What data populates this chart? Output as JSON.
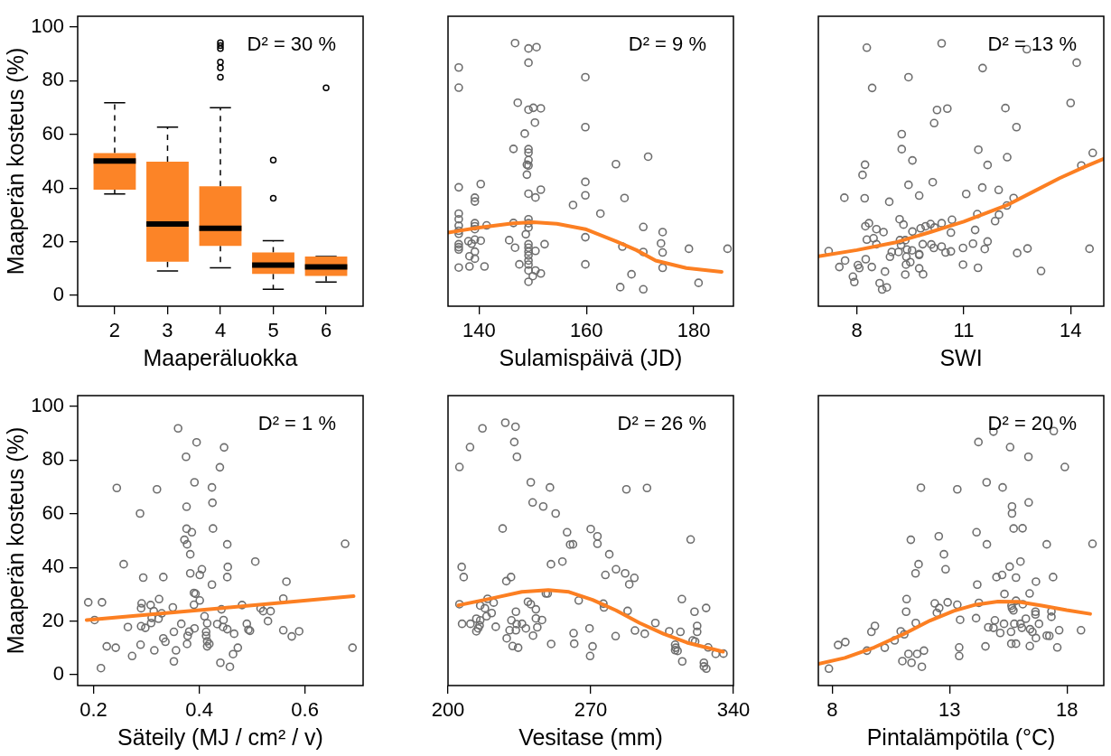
{
  "chart_data": [
    {
      "type": "box",
      "xlabel": "Maaperäluokka",
      "ylabel": "Maaperän kosteus (%)",
      "categories": [
        "2",
        "3",
        "4",
        "5",
        "6"
      ],
      "color": "#fc8427",
      "ylim": [
        -4,
        104
      ],
      "yticks": [
        0,
        20,
        40,
        60,
        80,
        100
      ],
      "grid": false,
      "legend": false,
      "annotations": [
        "D² = 30 %"
      ],
      "boxes": [
        {
          "low": 37.8,
          "q1": 39.4,
          "median": 50.1,
          "q3": 53.0,
          "high": 71.8
        },
        {
          "low": 9.1,
          "q1": 12.6,
          "median": 26.6,
          "q3": 49.8,
          "high": 62.7
        },
        {
          "low": 10.3,
          "q1": 18.5,
          "median": 25.0,
          "q3": 40.7,
          "high": 69.9,
          "outliers": [
            94.2,
            93.1,
            92.0,
            86.9,
            84.8,
            81.3
          ]
        },
        {
          "low": 2.3,
          "q1": 8.0,
          "median": 11.3,
          "q3": 16.0,
          "high": 20.4,
          "outliers": [
            50.4,
            36.2
          ]
        },
        {
          "low": 5.0,
          "q1": 7.3,
          "median": 10.6,
          "q3": 14.5,
          "high": 14.5,
          "outliers": [
            77.3
          ]
        }
      ]
    },
    {
      "type": "scatter",
      "xlabel": "Sulamispäivä (JD)",
      "xlim": [
        134.2,
        187.4
      ],
      "xticks": [
        140,
        160,
        180
      ],
      "ylim": [
        -4,
        104
      ],
      "tick_labels": "x",
      "grid": false,
      "legend": false,
      "marker": "circle",
      "annotations": [
        "D² = 9 %"
      ],
      "series": [
        {
          "type": "scatter",
          "color": "#6e6e6e",
          "x": [
            136.2,
            136.2,
            146.7,
            149.2,
            150.7,
            149.2,
            159.8,
            147.2,
            149.2,
            150.1,
            151.5,
            150.4,
            159.8,
            148.5,
            146.4,
            149.2,
            149.2,
            149.2,
            148.9,
            149.2,
            148.9,
            171.5,
            165.5,
            136.2,
            140.3,
            159.8,
            151.5,
            149.2,
            150.5,
            159.8,
            139.2,
            139.2,
            167.1,
            157.5,
            162.6,
            136.2,
            136.2,
            136.2,
            136.2,
            136.2,
            139.2,
            139.2,
            139.2,
            141.4,
            146.4,
            149.2,
            149.2,
            149.2,
            148.7,
            170.6,
            174.2,
            138.0,
            138.6,
            140.3,
            139.2,
            145.6,
            136.2,
            136.2,
            136.2,
            146.7,
            149.2,
            149.2,
            149.2,
            149.2,
            149.2,
            149.2,
            150.5,
            152.2,
            159.8,
            166.7,
            170.6,
            173.9,
            174.2,
            179.1,
            186.3,
            138.2,
            139.2,
            139.2,
            136.2,
            138.2,
            141.0,
            147.5,
            159.8,
            149.2,
            150.5,
            151.5,
            150.0,
            149.2,
            168.4,
            174.2,
            166.3,
            170.6,
            180.9
          ],
          "values": [
            84.9,
            77.4,
            94.0,
            92.0,
            92.5,
            86.7,
            81.3,
            71.8,
            69.2,
            69.9,
            69.7,
            64.4,
            62.7,
            60.3,
            54.6,
            54.5,
            53.2,
            50.4,
            48.7,
            48.4,
            45.0,
            51.7,
            48.9,
            40.3,
            41.5,
            42.3,
            39.4,
            37.9,
            36.5,
            37.3,
            36.4,
            35.0,
            36.3,
            33.7,
            30.5,
            30.5,
            28.4,
            26.0,
            23.0,
            24.1,
            26.9,
            25.8,
            24.7,
            26.1,
            27.0,
            28.4,
            26.9,
            25.3,
            22.8,
            25.5,
            23.6,
            20.2,
            19.3,
            20.4,
            20.8,
            20.6,
            19.1,
            18.0,
            17.1,
            17.8,
            19.1,
            17.8,
            16.3,
            14.9,
            13.0,
            11.5,
            16.6,
            19.1,
            21.7,
            18.2,
            16.2,
            19.4,
            16.0,
            17.4,
            17.4,
            14.6,
            13.7,
            16.3,
            10.4,
            10.8,
            10.8,
            11.6,
            11.6,
            9.3,
            9.3,
            8.2,
            7.2,
            5.1,
            7.9,
            10.3,
            3.1,
            2.3,
            4.7
          ]
        },
        {
          "type": "line",
          "marker": "none",
          "color": "#fc7f22",
          "x": [
            134.2,
            140,
            146.3,
            150.1,
            154.5,
            159.8,
            165.5,
            169.3,
            172.9,
            178.6,
            185.2
          ],
          "values": [
            23.4,
            25.3,
            26.9,
            27.3,
            26.7,
            24.7,
            20.2,
            16.9,
            13.0,
            10.2,
            8.8
          ]
        }
      ]
    },
    {
      "type": "scatter",
      "xlabel": "SWI",
      "xlim": [
        6.92,
        14.93
      ],
      "xticks": [
        8,
        11,
        14
      ],
      "ylim": [
        -4,
        104
      ],
      "tick_labels": "x",
      "grid": false,
      "legend": false,
      "marker": "circle",
      "annotations": [
        "D² = 13 %"
      ],
      "series": [
        {
          "type": "scatter",
          "color": "#6e6e6e",
          "x": [
            8.28,
            10.38,
            12.77,
            14.17,
            11.53,
            9.45,
            8.43,
            14.0,
            10.25,
            10.54,
            12.17,
            10.17,
            12.48,
            9.26,
            9.26,
            11.41,
            14.62,
            9.56,
            12.22,
            8.23,
            14.3,
            11.67,
            8.16,
            9.45,
            10.13,
            11.52,
            11.98,
            11.07,
            9.75,
            7.65,
            8.22,
            8.91,
            12.4,
            12.21,
            11.38,
            11.99,
            11.88,
            9.2,
            9.31,
            8.34,
            8.24,
            8.55,
            8.75,
            8.28,
            8.47,
            8.55,
            9.56,
            9.79,
            9.93,
            10.07,
            10.18,
            10.38,
            10.67,
            10.64,
            11.32,
            9.21,
            9.24,
            9.36,
            9.85,
            10.09,
            10.16,
            10.38,
            11.26,
            11.67,
            10.98,
            11.59,
            10.49,
            10.64,
            9.41,
            9.55,
            9.75,
            9.75,
            8.98,
            8.93,
            9.17,
            9.39,
            9.5,
            9.38,
            7.21,
            7.67,
            8.25,
            7.51,
            8.03,
            8.07,
            8.42,
            8.79,
            9.36,
            9.75,
            9.86,
            10.98,
            11.4,
            12.5,
            12.79,
            14.53,
            13.17,
            7.89,
            7.93,
            8.64,
            8.71,
            8.84
          ],
          "values": [
            92.3,
            93.9,
            91.7,
            86.7,
            84.7,
            81.3,
            77.3,
            71.7,
            69.1,
            69.6,
            69.8,
            64.2,
            62.7,
            60.1,
            54.5,
            54.3,
            53.1,
            50.3,
            51.5,
            48.7,
            48.4,
            48.6,
            44.9,
            41.2,
            42.2,
            40.2,
            39.3,
            37.8,
            37.2,
            36.4,
            36.2,
            34.9,
            36.3,
            33.5,
            30.3,
            30.1,
            27.7,
            28.4,
            26.4,
            26.9,
            25.8,
            24.7,
            23.6,
            20.8,
            21.3,
            19.1,
            23.8,
            25.0,
            25.8,
            26.6,
            25.3,
            26.9,
            28.2,
            23.4,
            24.4,
            20.6,
            18.8,
            20.6,
            19.1,
            19.0,
            17.7,
            18.2,
            19.3,
            20.1,
            17.7,
            17.3,
            16.0,
            16.4,
            17.1,
            16.8,
            15.4,
            15.1,
            16.2,
            14.4,
            16.2,
            14.4,
            12.4,
            11.5,
            16.5,
            13.0,
            13.5,
            10.6,
            11.3,
            10.2,
            10.6,
            8.9,
            7.8,
            10.1,
            7.9,
            11.5,
            10.3,
            15.8,
            17.5,
            17.4,
            9.1,
            7.0,
            5.0,
            4.6,
            2.2,
            3.0
          ]
        },
        {
          "type": "line",
          "marker": "none",
          "color": "#fc7f22",
          "x": [
            6.92,
            8.0,
            9.07,
            10.06,
            11.0,
            12.21,
            12.87,
            13.69,
            14.44,
            14.93
          ],
          "values": [
            14.6,
            16.9,
            19.7,
            23.6,
            27.5,
            33.6,
            38.1,
            43.7,
            48.2,
            50.9
          ]
        }
      ]
    },
    {
      "type": "scatter",
      "xlabel": "Säteily (MJ / cm² / v)",
      "ylabel": "Maaperän kosteus (%)",
      "xlim": [
        0.17,
        0.71
      ],
      "xticks": [
        0.2,
        0.4,
        0.6
      ],
      "ylim": [
        -4,
        104
      ],
      "yticks": [
        0,
        20,
        40,
        60,
        80,
        100
      ],
      "grid": false,
      "legend": false,
      "marker": "circle",
      "annotations": [
        "D² = 1 %"
      ],
      "series": [
        {
          "type": "scatter",
          "color": "#6e6e6e",
          "x": [
            0.36,
            0.395,
            0.447,
            0.375,
            0.439,
            0.244,
            0.32,
            0.391,
            0.424,
            0.425,
            0.376,
            0.288,
            0.426,
            0.376,
            0.386,
            0.372,
            0.377,
            0.453,
            0.676,
            0.383,
            0.257,
            0.506,
            0.405,
            0.454,
            0.383,
            0.401,
            0.294,
            0.332,
            0.453,
            0.565,
            0.424,
            0.39,
            0.393,
            0.324,
            0.401,
            0.559,
            0.19,
            0.216,
            0.291,
            0.308,
            0.39,
            0.481,
            0.35,
            0.29,
            0.442,
            0.516,
            0.314,
            0.329,
            0.521,
            0.535,
            0.202,
            0.31,
            0.323,
            0.41,
            0.446,
            0.53,
            0.309,
            0.415,
            0.434,
            0.366,
            0.49,
            0.265,
            0.29,
            0.298,
            0.391,
            0.445,
            0.453,
            0.493,
            0.496,
            0.352,
            0.381,
            0.413,
            0.466,
            0.559,
            0.589,
            0.575,
            0.378,
            0.413,
            0.332,
            0.336,
            0.415,
            0.419,
            0.377,
            0.289,
            0.225,
            0.242,
            0.315,
            0.356,
            0.415,
            0.473,
            0.69,
            0.464,
            0.273,
            0.352,
            0.44,
            0.458,
            0.214
          ],
          "values": [
            91.8,
            86.6,
            84.7,
            81.2,
            77.3,
            69.6,
            69.1,
            71.7,
            69.8,
            64.1,
            62.6,
            60.1,
            54.5,
            54.4,
            53.1,
            50.3,
            48.6,
            48.6,
            48.8,
            44.9,
            41.2,
            42.2,
            39.3,
            40.2,
            37.8,
            37.2,
            36.2,
            36.4,
            36.4,
            34.7,
            33.6,
            30.5,
            30.2,
            28.2,
            27.7,
            28.4,
            27.0,
            27.0,
            26.6,
            26.0,
            26.1,
            26.0,
            25.1,
            24.8,
            24.4,
            24.8,
            23.7,
            22.9,
            23.7,
            23.7,
            20.4,
            21.2,
            20.9,
            21.8,
            20.4,
            20.0,
            19.3,
            19.2,
            18.9,
            19.0,
            19.0,
            17.8,
            18.1,
            17.5,
            17.3,
            17.8,
            17.0,
            16.8,
            16.4,
            16.0,
            16.1,
            16.0,
            15.3,
            16.6,
            16.2,
            14.3,
            14.5,
            14.5,
            13.6,
            12.3,
            12.5,
            11.5,
            11.5,
            11.2,
            10.6,
            10.1,
            9.1,
            9.1,
            10.6,
            10.1,
            10.1,
            7.7,
            7.0,
            5.0,
            4.5,
            3.0,
            2.5
          ]
        },
        {
          "type": "line",
          "marker": "none",
          "color": "#fc7f22",
          "x": [
            0.187,
            0.439,
            0.692
          ],
          "values": [
            20.4,
            24.8,
            29.3
          ]
        }
      ]
    },
    {
      "type": "scatter",
      "xlabel": "Vesitase (mm)",
      "xlim": [
        200,
        340
      ],
      "xticks": [
        200,
        270,
        340
      ],
      "ylim": [
        -4,
        104
      ],
      "tick_labels": "x",
      "grid": false,
      "legend": false,
      "marker": "circle",
      "annotations": [
        "D² = 26 %"
      ],
      "series": [
        {
          "type": "scatter",
          "color": "#6e6e6e",
          "x": [
            205.6,
            210.8,
            216.9,
            228.1,
            233.1,
            232.5,
            233.8,
            240.6,
            250.0,
            287.5,
            297.6,
            241.5,
            246.7,
            252.8,
            226.8,
            270.0,
            258.4,
            273.3,
            273.3,
            259.9,
            261.3,
            319.0,
            279.1,
            256.1,
            250.5,
            206.7,
            207.7,
            282.4,
            286.9,
            291.4,
            277.2,
            288.9,
            228.6,
            230.9,
            248.9,
            248.0,
            205.6,
            219.4,
            222.4,
            215.8,
            218.1,
            221.4,
            218.9,
            215.8,
            213.9,
            215.5,
            213.9,
            214.8,
            206.9,
            211.0,
            223.4,
            233.3,
            239.2,
            240.6,
            243.1,
            243.1,
            246.1,
            243.8,
            241.7,
            231.1,
            233.7,
            236.3,
            238.2,
            230.2,
            233.3,
            228.8,
            231.7,
            234.4,
            250.6,
            264.1,
            261.6,
            261.9,
            269.4,
            270.9,
            269.7,
            276.2,
            276.5,
            282.2,
            288.1,
            291.7,
            296.5,
            301.7,
            308.5,
            314.0,
            314.7,
            320.9,
            326.6,
            322.2,
            322.2,
            320.0,
            321.2,
            311.4,
            311.7,
            312.6,
            311.4,
            327.6,
            331.3,
            335.1,
            314.9,
            325.5,
            325.5,
            326.7
          ],
          "values": [
            77.4,
            84.8,
            91.8,
            93.9,
            92.4,
            86.7,
            81.2,
            71.7,
            69.8,
            69.1,
            69.6,
            64.2,
            62.7,
            60.1,
            54.5,
            54.3,
            53.1,
            51.6,
            48.8,
            48.5,
            48.6,
            50.4,
            44.9,
            42.2,
            41.2,
            40.2,
            36.4,
            39.3,
            37.8,
            36.1,
            37.2,
            33.7,
            34.9,
            36.4,
            30.3,
            30.3,
            26.3,
            28.3,
            26.9,
            25.8,
            24.8,
            23.0,
            21.8,
            20.3,
            20.9,
            18.4,
            16.2,
            17.3,
            19.0,
            19.0,
            17.9,
            23.5,
            27.2,
            26.3,
            24.4,
            21.0,
            20.4,
            17.7,
            14.6,
            20.3,
            18.9,
            19.0,
            17.3,
            16.6,
            16.6,
            13.6,
            10.7,
            10.1,
            11.5,
            27.7,
            15.5,
            11.6,
            17.3,
            10.6,
            7.0,
            26.5,
            25.1,
            14.4,
            23.8,
            16.5,
            15.3,
            19.3,
            16.2,
            16.0,
            28.2,
            23.5,
            24.9,
            18.2,
            16.0,
            12.8,
            12.4,
            11.2,
            10.1,
            8.9,
            9.2,
            10.2,
            7.8,
            7.9,
            5.0,
            4.5,
            3.1,
            2.3
          ]
        },
        {
          "type": "line",
          "marker": "none",
          "color": "#fc7f22",
          "x": [
            205.1,
            221.7,
            236.2,
            249.2,
            259.3,
            270.9,
            282.4,
            294.0,
            305.6,
            317.2,
            334.9
          ],
          "values": [
            25.9,
            28.5,
            30.9,
            31.6,
            30.9,
            27.9,
            24.0,
            19.3,
            15.3,
            12.0,
            8.6
          ]
        }
      ]
    },
    {
      "type": "scatter",
      "xlabel": "Pintalämpötila (°C)",
      "xlim": [
        7.41,
        19.57
      ],
      "xticks": [
        8,
        13,
        18
      ],
      "ylim": [
        -4,
        104
      ],
      "tick_labels": "x",
      "grid": false,
      "legend": false,
      "marker": "circle",
      "annotations": [
        "D² = 20 %"
      ],
      "series": [
        {
          "type": "scatter",
          "color": "#6e6e6e",
          "x": [
            14.87,
            17.44,
            14.23,
            15.58,
            16.36,
            17.91,
            11.78,
            13.33,
            14.58,
            15.26,
            16.37,
            15.66,
            15.66,
            15.73,
            16.11,
            14.15,
            12.54,
            11.35,
            14.59,
            17.14,
            19.09,
            12.76,
            11.68,
            16.02,
            15.56,
            11.55,
            12.83,
            15.0,
            15.24,
            15.83,
            16.68,
            17.41,
            14.18,
            15.34,
            16.41,
            11.17,
            12.37,
            12.92,
            13.33,
            14.25,
            12.56,
            12.46,
            15.64,
            15.83,
            16.12,
            15.66,
            15.72,
            16.66,
            16.66,
            17.34,
            17.34,
            11.15,
            11.56,
            13.45,
            14.13,
            14.93,
            15.32,
            15.76,
            16.02,
            16.25,
            16.81,
            14.65,
            14.87,
            15.16,
            15.62,
            16.08,
            16.43,
            16.53,
            17.67,
            18.6,
            17.14,
            17.25,
            16.68,
            9.82,
            9.67,
            10.92,
            11.07,
            10.66,
            8.25,
            8.56,
            9.48,
            10.24,
            14.53,
            15.63,
            15.83,
            16.42,
            17.59,
            13.41,
            13.41,
            11.25,
            11.62,
            11.91,
            10.99,
            11.38,
            11.82,
            7.86
          ],
          "values": [
            90.6,
            90.8,
            86.7,
            84.8,
            81.2,
            77.4,
            69.7,
            69.1,
            71.7,
            69.8,
            64.2,
            62.7,
            60.1,
            54.5,
            54.6,
            53.1,
            51.6,
            50.3,
            48.6,
            48.6,
            48.8,
            44.9,
            41.2,
            42.2,
            40.3,
            37.8,
            39.3,
            36.4,
            37.2,
            36.2,
            34.7,
            36.4,
            33.6,
            30.1,
            30.3,
            28.2,
            26.6,
            27.0,
            26.1,
            26.8,
            24.9,
            23.1,
            25.8,
            27.6,
            26.3,
            24.8,
            24.0,
            23.5,
            22.5,
            23.6,
            21.6,
            23.5,
            19.3,
            20.5,
            21.1,
            20.3,
            19.0,
            19.0,
            19.0,
            20.9,
            19.0,
            17.7,
            17.5,
            15.6,
            16.0,
            17.5,
            17.0,
            16.0,
            16.6,
            16.6,
            14.6,
            14.5,
            13.7,
            18.2,
            16.0,
            16.2,
            15.1,
            12.8,
            11.1,
            12.2,
            9.0,
            10.1,
            10.6,
            11.6,
            11.6,
            10.7,
            10.2,
            10.2,
            7.0,
            7.8,
            7.8,
            9.0,
            5.1,
            4.5,
            3.0,
            2.3
          ]
        },
        {
          "type": "line",
          "marker": "none",
          "color": "#fc7f22",
          "x": [
            7.41,
            8.54,
            9.79,
            11.05,
            12.17,
            13.18,
            14.05,
            15.06,
            15.93,
            16.93,
            17.99,
            18.99
          ],
          "values": [
            4.1,
            6.3,
            10.2,
            15.2,
            20.2,
            23.8,
            26.0,
            27.3,
            27.2,
            25.8,
            24.1,
            22.7
          ]
        }
      ]
    }
  ]
}
